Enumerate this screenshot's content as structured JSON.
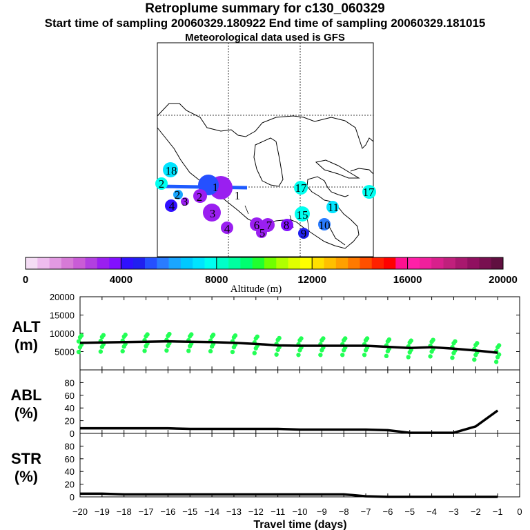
{
  "title": {
    "line1": "Retroplume summary for c130_060329",
    "line2": "Start time of sampling 20060329.180922     End time of sampling 20060329.181015",
    "line3": "Meteorological data used is GFS"
  },
  "chart_data": {
    "type": "multi-panel",
    "map": {
      "labels": [
        {
          "text": "1",
          "lon_idx": 0
        },
        {
          "text": "1",
          "lon_idx": 1
        },
        {
          "text": "2",
          "lon_idx": 2
        },
        {
          "text": "3",
          "lon_idx": 3
        },
        {
          "text": "4",
          "lon_idx": 4
        },
        {
          "text": "4",
          "lon_idx": 5
        },
        {
          "text": "5",
          "lon_idx": 6
        },
        {
          "text": "6",
          "lon_idx": 7
        },
        {
          "text": "7",
          "lon_idx": 8
        },
        {
          "text": "8",
          "lon_idx": 9
        },
        {
          "text": "9",
          "lon_idx": 10
        },
        {
          "text": "10",
          "lon_idx": 11
        },
        {
          "text": "11",
          "lon_idx": 12
        },
        {
          "text": "15",
          "lon_idx": 13
        },
        {
          "text": "17",
          "lon_idx": 14
        },
        {
          "text": "17",
          "lon_idx": 15
        },
        {
          "text": "18",
          "lon_idx": 16
        },
        {
          "text": "2",
          "lon_idx": 17
        },
        {
          "text": "2",
          "lon_idx": 18
        },
        {
          "text": "3",
          "lon_idx": 19
        }
      ],
      "colorbar": {
        "label": "Altitude (m)",
        "ticks": [
          "0",
          "4000",
          "8000",
          "12000",
          "16000",
          "20000"
        ],
        "min": 0,
        "max": 20000
      }
    },
    "panels": [
      {
        "name": "ALT",
        "unit": "(m)",
        "ylim": [
          0,
          20000
        ],
        "yticks": [
          5000,
          10000,
          15000,
          20000
        ],
        "x": [
          -20,
          -19,
          -18,
          -17,
          -16,
          -15,
          -14,
          -13,
          -12,
          -11,
          -10,
          -9,
          -8,
          -7,
          -6,
          -5,
          -4,
          -3,
          -2,
          -1
        ],
        "values": [
          7400,
          7500,
          7600,
          7700,
          7800,
          7700,
          7600,
          7400,
          7100,
          6700,
          6600,
          6600,
          6600,
          6600,
          6300,
          6000,
          6200,
          5800,
          5300,
          4700
        ]
      },
      {
        "name": "ABL",
        "unit": "(%)",
        "ylim": [
          0,
          100
        ],
        "yticks": [
          0,
          20,
          40,
          60,
          80
        ],
        "x": [
          -20,
          -19,
          -18,
          -17,
          -16,
          -15,
          -14,
          -13,
          -12,
          -11,
          -10,
          -9,
          -8,
          -7,
          -6,
          -5,
          -4,
          -3,
          -2,
          -1
        ],
        "values": [
          8,
          8,
          8,
          8,
          8,
          7,
          7,
          7,
          7,
          7,
          6,
          6,
          6,
          6,
          5,
          1,
          1,
          1,
          11,
          36
        ]
      },
      {
        "name": "STR",
        "unit": "(%)",
        "ylim": [
          0,
          100
        ],
        "yticks": [
          0,
          20,
          40,
          60,
          80
        ],
        "x": [
          -20,
          -19,
          -18,
          -17,
          -16,
          -15,
          -14,
          -13,
          -12,
          -11,
          -10,
          -9,
          -8,
          -7,
          -6,
          -5,
          -4,
          -3,
          -2,
          -1
        ],
        "values": [
          5,
          5,
          4,
          4,
          4,
          4,
          4,
          4,
          4,
          4,
          4,
          4,
          4,
          1,
          0,
          0,
          0,
          0,
          0,
          0
        ]
      }
    ],
    "xaxis": {
      "label": "Travel time (days)",
      "ticks": [
        -20,
        -19,
        -18,
        -17,
        -16,
        -15,
        -14,
        -13,
        -12,
        -11,
        -10,
        -9,
        -8,
        -7,
        -6,
        -5,
        -4,
        -3,
        -2,
        -1,
        0
      ],
      "tick_labels": [
        "−20",
        "−19",
        "−18",
        "−17",
        "−16",
        "−15",
        "−14",
        "−13",
        "−12",
        "−11",
        "−10",
        "−9",
        "−8",
        "−7",
        "−6",
        "−5",
        "−4",
        "−3",
        "−2",
        "−1",
        "0"
      ]
    }
  }
}
